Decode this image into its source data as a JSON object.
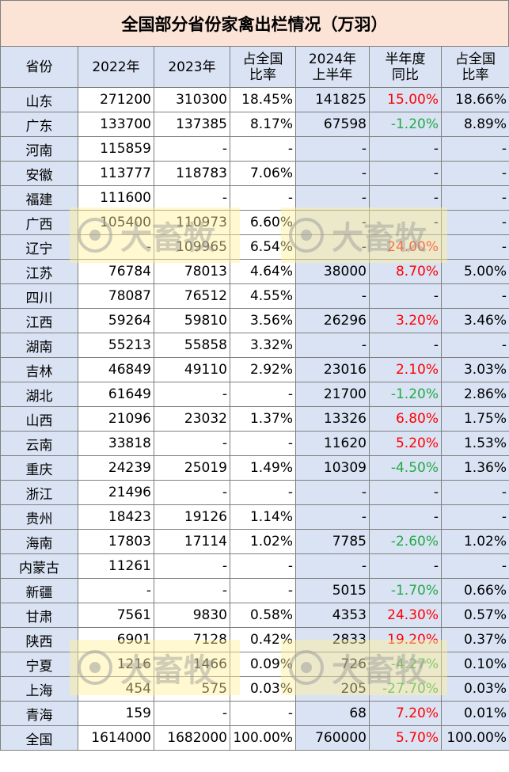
{
  "title": "全国部分省份家禽出栏情况（万羽）",
  "headers": [
    {
      "l1": "省份",
      "l2": ""
    },
    {
      "l1": "2022年",
      "l2": ""
    },
    {
      "l1": "2023年",
      "l2": ""
    },
    {
      "l1": "占全国",
      "l2": "比率"
    },
    {
      "l1": "2024年",
      "l2": "上半年"
    },
    {
      "l1": "半年度",
      "l2": "同比"
    },
    {
      "l1": "占全国",
      "l2": "比率"
    }
  ],
  "rows": [
    {
      "p": "山东",
      "y22": "271200",
      "y23": "310300",
      "r23": "18.45%",
      "h24": "141825",
      "yoy": "15.00%",
      "t": "up",
      "r24": "18.66%"
    },
    {
      "p": "广东",
      "y22": "133700",
      "y23": "137385",
      "r23": "8.17%",
      "h24": "67598",
      "yoy": "-1.20%",
      "t": "down",
      "r24": "8.89%"
    },
    {
      "p": "河南",
      "y22": "115859",
      "y23": "-",
      "r23": "-",
      "h24": "-",
      "yoy": "-",
      "t": "",
      "r24": "-"
    },
    {
      "p": "安徽",
      "y22": "113777",
      "y23": "118783",
      "r23": "7.06%",
      "h24": "-",
      "yoy": "-",
      "t": "",
      "r24": "-"
    },
    {
      "p": "福建",
      "y22": "111600",
      "y23": "-",
      "r23": "-",
      "h24": "-",
      "yoy": "-",
      "t": "",
      "r24": "-"
    },
    {
      "p": "广西",
      "y22": "105400",
      "y23": "110973",
      "r23": "6.60%",
      "h24": "-",
      "yoy": "-",
      "t": "",
      "r24": "-"
    },
    {
      "p": "辽宁",
      "y22": "-",
      "y23": "109965",
      "r23": "6.54%",
      "h24": "-",
      "yoy": "24.00%",
      "t": "up",
      "r24": "-"
    },
    {
      "p": "江苏",
      "y22": "76784",
      "y23": "78013",
      "r23": "4.64%",
      "h24": "38000",
      "yoy": "8.70%",
      "t": "up",
      "r24": "5.00%"
    },
    {
      "p": "四川",
      "y22": "78087",
      "y23": "76512",
      "r23": "4.55%",
      "h24": "-",
      "yoy": "-",
      "t": "",
      "r24": "-"
    },
    {
      "p": "江西",
      "y22": "59264",
      "y23": "59810",
      "r23": "3.56%",
      "h24": "26296",
      "yoy": "3.20%",
      "t": "up",
      "r24": "3.46%"
    },
    {
      "p": "湖南",
      "y22": "55213",
      "y23": "55858",
      "r23": "3.32%",
      "h24": "-",
      "yoy": "-",
      "t": "",
      "r24": "-"
    },
    {
      "p": "吉林",
      "y22": "46849",
      "y23": "49110",
      "r23": "2.92%",
      "h24": "23016",
      "yoy": "2.10%",
      "t": "up",
      "r24": "3.03%"
    },
    {
      "p": "湖北",
      "y22": "61649",
      "y23": "-",
      "r23": "-",
      "h24": "21700",
      "yoy": "-1.20%",
      "t": "down",
      "r24": "2.86%"
    },
    {
      "p": "山西",
      "y22": "21096",
      "y23": "23032",
      "r23": "1.37%",
      "h24": "13326",
      "yoy": "6.80%",
      "t": "up",
      "r24": "1.75%"
    },
    {
      "p": "云南",
      "y22": "33818",
      "y23": "-",
      "r23": "-",
      "h24": "11620",
      "yoy": "5.20%",
      "t": "up",
      "r24": "1.53%"
    },
    {
      "p": "重庆",
      "y22": "24239",
      "y23": "25019",
      "r23": "1.49%",
      "h24": "10309",
      "yoy": "-4.50%",
      "t": "down",
      "r24": "1.36%"
    },
    {
      "p": "浙江",
      "y22": "21496",
      "y23": "-",
      "r23": "-",
      "h24": "-",
      "yoy": "-",
      "t": "",
      "r24": "-"
    },
    {
      "p": "贵州",
      "y22": "18423",
      "y23": "19126",
      "r23": "1.14%",
      "h24": "-",
      "yoy": "-",
      "t": "",
      "r24": "-"
    },
    {
      "p": "海南",
      "y22": "17803",
      "y23": "17114",
      "r23": "1.02%",
      "h24": "7785",
      "yoy": "-2.60%",
      "t": "down",
      "r24": "1.02%"
    },
    {
      "p": "内蒙古",
      "y22": "11261",
      "y23": "-",
      "r23": "-",
      "h24": "-",
      "yoy": "-",
      "t": "",
      "r24": "-"
    },
    {
      "p": "新疆",
      "y22": "-",
      "y23": "-",
      "r23": "-",
      "h24": "5015",
      "yoy": "-1.70%",
      "t": "down",
      "r24": "0.66%"
    },
    {
      "p": "甘肃",
      "y22": "7561",
      "y23": "9830",
      "r23": "0.58%",
      "h24": "4353",
      "yoy": "24.30%",
      "t": "up",
      "r24": "0.57%"
    },
    {
      "p": "陕西",
      "y22": "6901",
      "y23": "7128",
      "r23": "0.42%",
      "h24": "2833",
      "yoy": "19.20%",
      "t": "up",
      "r24": "0.37%"
    },
    {
      "p": "宁夏",
      "y22": "1216",
      "y23": "1466",
      "r23": "0.09%",
      "h24": "726",
      "yoy": "-4.27%",
      "t": "down",
      "r24": "0.10%"
    },
    {
      "p": "上海",
      "y22": "454",
      "y23": "575",
      "r23": "0.03%",
      "h24": "205",
      "yoy": "-27.70%",
      "t": "down",
      "r24": "0.03%"
    },
    {
      "p": "青海",
      "y22": "159",
      "y23": "-",
      "r23": "-",
      "h24": "68",
      "yoy": "7.20%",
      "t": "up",
      "r24": "0.01%"
    },
    {
      "p": "全国",
      "y22": "1614000",
      "y23": "1682000",
      "r23": "100.00%",
      "h24": "760000",
      "yoy": "5.70%",
      "t": "up",
      "r24": "100.00%"
    }
  ],
  "watermark": {
    "text": "大畜牧"
  },
  "colors": {
    "title_bg": "#fbe3d6",
    "header_bg": "#dae3f3",
    "up": "#ff0000",
    "down": "#22aa44"
  }
}
